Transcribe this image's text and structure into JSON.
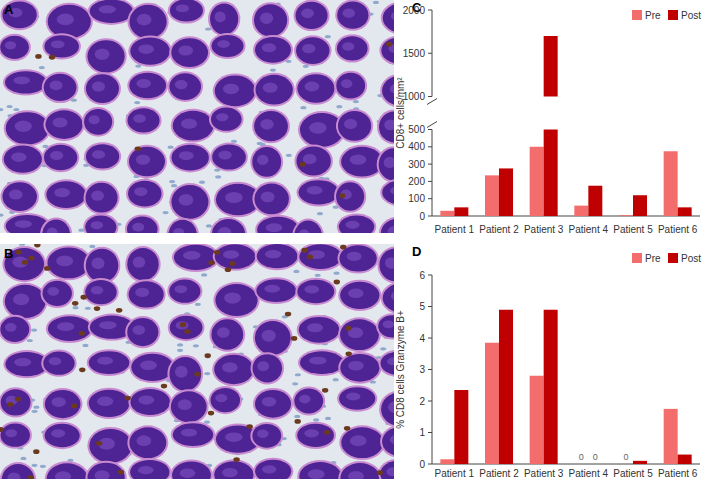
{
  "panel_labels": [
    "A",
    "B",
    "C",
    "D"
  ],
  "chart_data": [
    {
      "type": "bar",
      "categories": [
        "Patient 1",
        "Patient 2",
        "Patient 3",
        "Patient 4",
        "Patient 5",
        "Patient 6"
      ],
      "series": [
        {
          "name": "Pre",
          "color": "#f46d6d",
          "values": [
            30,
            235,
            400,
            60,
            5,
            375
          ]
        },
        {
          "name": "Post",
          "color": "#c00000",
          "values": [
            50,
            275,
            1700,
            175,
            120,
            50
          ]
        }
      ],
      "ylabel": "CD8+ cells/mm²",
      "ylim": [
        0,
        2000
      ],
      "yticks": [
        0,
        100,
        200,
        300,
        400,
        500,
        1000,
        1500,
        2000
      ],
      "ybreak": [
        500,
        1000
      ],
      "legend": "top-right",
      "grid": false
    },
    {
      "type": "bar",
      "categories": [
        "Patient 1",
        "Patient 2",
        "Patient 3",
        "Patient 4",
        "Patient 5",
        "Patient 6"
      ],
      "series": [
        {
          "name": "Pre",
          "color": "#f46d6d",
          "values": [
            0.15,
            3.85,
            2.8,
            0,
            0,
            1.75
          ],
          "value_labels": [
            null,
            null,
            null,
            "0",
            "0",
            null
          ]
        },
        {
          "name": "Post",
          "color": "#c00000",
          "values": [
            2.35,
            4.9,
            4.9,
            0,
            0.1,
            0.3
          ],
          "value_labels": [
            null,
            null,
            null,
            "0",
            null,
            null
          ]
        }
      ],
      "ylabel": "% CD8 cells Granzyme B+",
      "ylim": [
        0,
        6
      ],
      "yticks": [
        0,
        1,
        2,
        3,
        4,
        5,
        6
      ],
      "legend": "top-right",
      "grid": false
    }
  ]
}
